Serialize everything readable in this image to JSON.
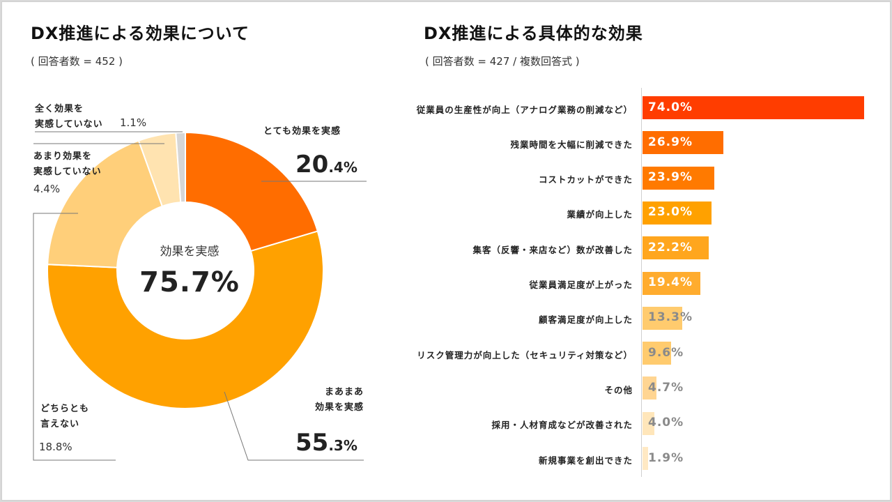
{
  "left": {
    "title": "DX推進による効果について",
    "subtitle_prefix": "( 回答者数 = ",
    "subtitle_n": "452",
    "subtitle_suffix": " )",
    "center_label": "効果を実感",
    "center_value": "75.7%"
  },
  "right": {
    "title": "DX推進による具体的な効果",
    "subtitle_prefix": "( 回答者数 = ",
    "subtitle_n": "427",
    "subtitle_suffix": " / 複数回答式 )"
  },
  "chart_data": [
    {
      "type": "pie",
      "variant": "donut",
      "title": "DX推進による効果について",
      "n": 452,
      "center_label": "効果を実感",
      "center_value": "75.7%",
      "slices": [
        {
          "label_lines": [
            "とても効果を実感"
          ],
          "value": 20.4,
          "int": "20",
          "dec": ".4%",
          "color": "#FF6D00"
        },
        {
          "label_lines": [
            "まあまあ",
            "効果を実感"
          ],
          "value": 55.3,
          "int": "55",
          "dec": ".3%",
          "color": "#FFA100"
        },
        {
          "label_lines": [
            "どちらとも",
            "言えない"
          ],
          "value": 18.8,
          "text": "18.8%",
          "color": "#FFCF7A"
        },
        {
          "label_lines": [
            "あまり効果を",
            "実感していない"
          ],
          "value": 4.4,
          "text": "4.4%",
          "color": "#FFE3B0"
        },
        {
          "label_lines": [
            "全く効果を",
            "実感していない"
          ],
          "value": 1.1,
          "text": "1.1%",
          "color": "#D6D6D6"
        }
      ]
    },
    {
      "type": "bar",
      "orientation": "horizontal",
      "title": "DX推進による具体的な効果",
      "n": 427,
      "unit": "%",
      "xlim": [
        0,
        74
      ],
      "categories": [
        "従業員の生産性が向上（アナログ業務の削減など）",
        "残業時間を大幅に削減できた",
        "コストカットができた",
        "業績が向上した",
        "集客（反響・来店など）数が改善した",
        "従業員満足度が上がった",
        "顧客満足度が向上した",
        "リスク管理力が向上した（セキュリティ対策など）",
        "その他",
        "採用・人材育成などが改善された",
        "新規事業を創出できた"
      ],
      "values": [
        74.0,
        26.9,
        23.9,
        23.0,
        22.2,
        19.4,
        13.3,
        9.6,
        4.7,
        4.0,
        1.9
      ],
      "value_labels": [
        "74.0%",
        "26.9%",
        "23.9%",
        "23.0%",
        "22.2%",
        "19.4%",
        "13.3%",
        "9.6%",
        "4.7%",
        "4.0%",
        "1.9%"
      ],
      "colors": [
        "#FF3D00",
        "#FF6D00",
        "#FF7A00",
        "#FFA100",
        "#FFA61E",
        "#FFAC2E",
        "#FFCB6E",
        "#FFCB6E",
        "#FFD592",
        "#FFE6BA",
        "#FFE9C4"
      ]
    }
  ]
}
